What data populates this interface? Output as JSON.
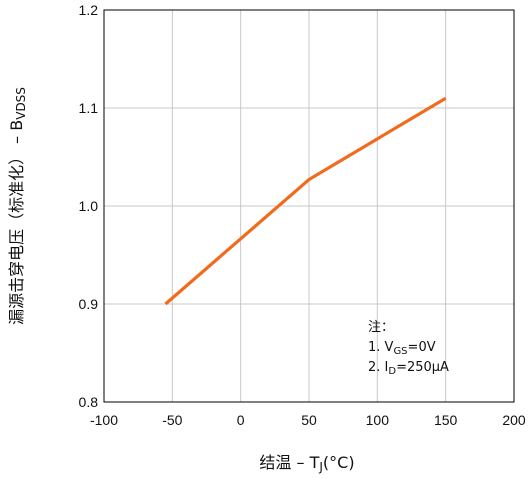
{
  "chart_data": {
    "type": "line",
    "title": "",
    "xlabel": "结温 – T",
    "xlabel_sub": "J",
    "xlabel_unit": "(°C)",
    "ylabel": "漏源击穿电压（标准化） – B",
    "ylabel_sub": "VDSS",
    "xlim": [
      -100,
      200
    ],
    "ylim": [
      0.8,
      1.2
    ],
    "xticks": [
      "-100",
      "-50",
      "0",
      "50",
      "100",
      "150",
      "200"
    ],
    "yticks": [
      "0.8",
      "0.9",
      "1.0",
      "1.1",
      "1.2"
    ],
    "grid": true,
    "series": [
      {
        "color": "#f26b1d",
        "x": [
          -55,
          50,
          150
        ],
        "y": [
          0.9,
          1.027,
          1.11
        ]
      }
    ],
    "note": {
      "title": "注：",
      "line1_prefix": "1. V",
      "line1_sub": "GS",
      "line1_suffix": "=0V",
      "line2_prefix": "2. I",
      "line2_sub": "D",
      "line2_suffix": "=250µA"
    }
  }
}
